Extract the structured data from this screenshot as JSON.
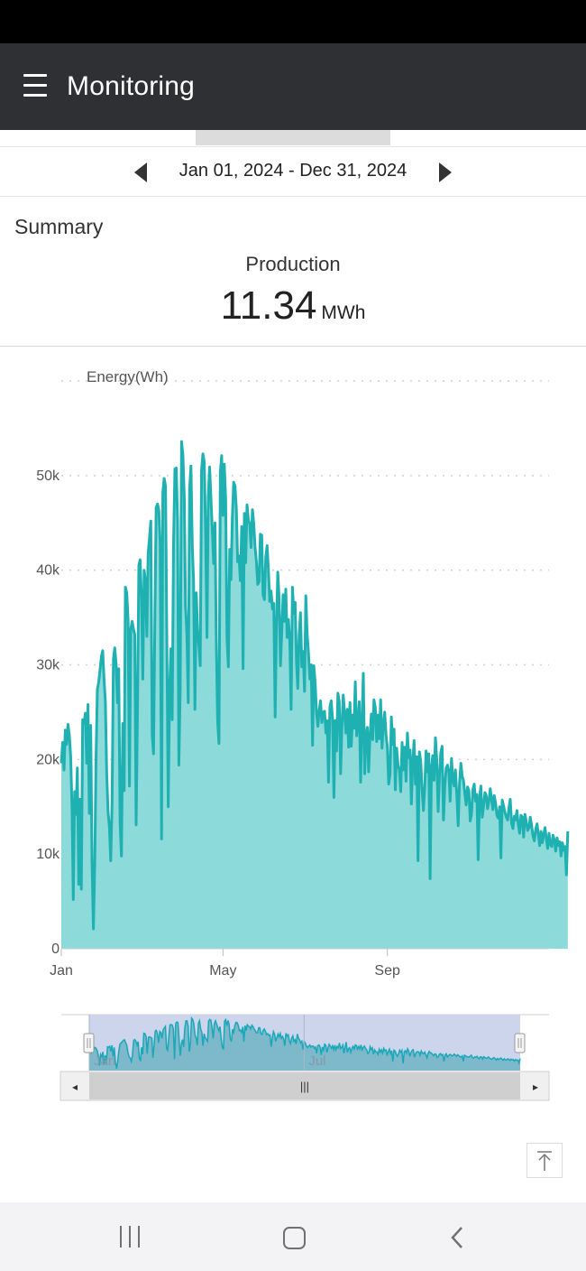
{
  "appbar": {
    "title": "Monitoring",
    "menu_icon": "hamburger-icon"
  },
  "date_nav": {
    "range": "Jan 01, 2024 - Dec 31, 2024",
    "prev_icon": "caret-left-icon",
    "next_icon": "caret-right-icon"
  },
  "summary": {
    "label": "Summary",
    "production_label": "Production",
    "production_value": "11.34",
    "production_unit": "MWh"
  },
  "colors": {
    "line": "#1fb1b1",
    "area": "#8ddadb",
    "appbar": "#2f3033"
  },
  "chart_data": {
    "type": "area",
    "ylabel": "Energy(Wh)",
    "y_ticks": [
      "0",
      "10k",
      "20k",
      "30k",
      "40k",
      "50k"
    ],
    "ylim": [
      0,
      60000
    ],
    "x_ticks": [
      {
        "label": "Jan",
        "day": 0
      },
      {
        "label": "May",
        "day": 121
      },
      {
        "label": "Sep",
        "day": 244
      }
    ],
    "x_domain_days": [
      0,
      365
    ],
    "grid": true,
    "y_daily_wh": [
      19600,
      21800,
      18900,
      23100,
      21600,
      23700,
      22600,
      20300,
      14900,
      5200,
      16600,
      14200,
      19100,
      6800,
      15800,
      6300,
      24200,
      23800,
      24900,
      19600,
      25800,
      14300,
      23600,
      9100,
      2100,
      8900,
      20000,
      27400,
      28200,
      29500,
      30900,
      31500,
      28500,
      26100,
      18400,
      14400,
      12800,
      9300,
      15400,
      30600,
      31800,
      30100,
      26000,
      29600,
      13300,
      9800,
      23800,
      16700,
      38200,
      37600,
      34700,
      17200,
      33800,
      34600,
      33800,
      33200,
      13100,
      25300,
      40500,
      41100,
      37200,
      28500,
      40000,
      38800,
      33000,
      41700,
      43400,
      45200,
      22600,
      20600,
      35100,
      46600,
      47000,
      46300,
      42700,
      11600,
      48200,
      49700,
      48900,
      32200,
      15000,
      27200,
      31700,
      24200,
      42800,
      50700,
      50800,
      45200,
      19400,
      27600,
      53600,
      52100,
      47800,
      36200,
      33200,
      26000,
      48600,
      51000,
      42600,
      38900,
      25300,
      37600,
      33600,
      31900,
      29900,
      50600,
      52300,
      51400,
      43700,
      32900,
      47700,
      50900,
      47600,
      44100,
      40700,
      45000,
      32700,
      24000,
      21700,
      50400,
      52100,
      45800,
      51200,
      47500,
      32700,
      29800,
      42200,
      39000,
      45600,
      49300,
      48900,
      46400,
      40900,
      41500,
      38900,
      44600,
      29600,
      46000,
      40800,
      46900,
      45300,
      44900,
      42400,
      46400,
      45000,
      42500,
      40900,
      38500,
      38800,
      43800,
      43700,
      37400,
      36900,
      41400,
      42600,
      40100,
      36700,
      37800,
      35900,
      36500,
      24500,
      33700,
      39800,
      37100,
      29900,
      33600,
      37400,
      34600,
      38000,
      32900,
      34800,
      32300,
      25300,
      38200,
      35400,
      36600,
      30200,
      27500,
      33100,
      35500,
      29800,
      31400,
      27200,
      37300,
      33300,
      31200,
      28500,
      30000,
      21500,
      29900,
      28100,
      24900,
      23500,
      25200,
      26200,
      23900,
      25000,
      25100,
      22800,
      24100,
      17600,
      25500,
      26200,
      24300,
      16000,
      24100,
      20900,
      27000,
      26100,
      18500,
      23600,
      26800,
      24900,
      22800,
      25300,
      21300,
      26000,
      21400,
      24700,
      23300,
      28200,
      22500,
      23700,
      26100,
      17600,
      24000,
      29100,
      18500,
      22400,
      23400,
      18700,
      22500,
      24800,
      22100,
      26300,
      25500,
      21900,
      24700,
      22200,
      26300,
      21200,
      23700,
      25000,
      22600,
      21300,
      17400,
      18400,
      24500,
      21600,
      23200,
      16800,
      21200,
      19400,
      18900,
      16600,
      21800,
      18900,
      21300,
      17700,
      22800,
      20200,
      21000,
      15300,
      19700,
      22000,
      17400,
      20300,
      9300,
      20800,
      19800,
      16800,
      14600,
      17200,
      20900,
      18700,
      20600,
      7400,
      19200,
      20400,
      17800,
      22300,
      19900,
      14500,
      18300,
      20700,
      21400,
      13600,
      17200,
      19100,
      19400,
      18800,
      15600,
      20100,
      17900,
      17200,
      18900,
      16300,
      13000,
      17500,
      19600,
      18200,
      17800,
      16400,
      15200,
      17100,
      16700,
      13500,
      14200,
      16800,
      17400,
      15600,
      16300,
      9400,
      15900,
      17200,
      13900,
      15100,
      16500,
      16200,
      14800,
      15600,
      16900,
      15800,
      14700,
      16200,
      15400,
      14100,
      13800,
      15000,
      9600,
      15700,
      15100,
      14400,
      13900,
      13600,
      14900,
      15800,
      13200,
      12700,
      14000,
      13600,
      14600,
      13100,
      12200,
      14100,
      13900,
      11800,
      14200,
      13400,
      12500,
      12800,
      13900,
      13000,
      11900,
      11400,
      12600,
      13200,
      12100,
      10900,
      12400,
      11200,
      12100,
      12800,
      11600,
      10600,
      12200,
      11000,
      10800,
      12000,
      11500,
      10300,
      11700,
      10900,
      11300,
      9800,
      11200,
      10400,
      10800,
      7800,
      12400
    ]
  },
  "overview": {
    "x_ticks": [
      {
        "label": "Jan",
        "day": 0
      },
      {
        "label": "Jul",
        "day": 182
      }
    ],
    "window_days": [
      0,
      365
    ],
    "left_arrow": "◂",
    "right_arrow": "▸",
    "thumb_grip": "|||"
  },
  "scroll_top_icon": "arrow-up-to-top-icon",
  "system_nav": {
    "recents_icon": "recents-icon",
    "home_icon": "home-icon",
    "back_icon": "back-icon"
  }
}
